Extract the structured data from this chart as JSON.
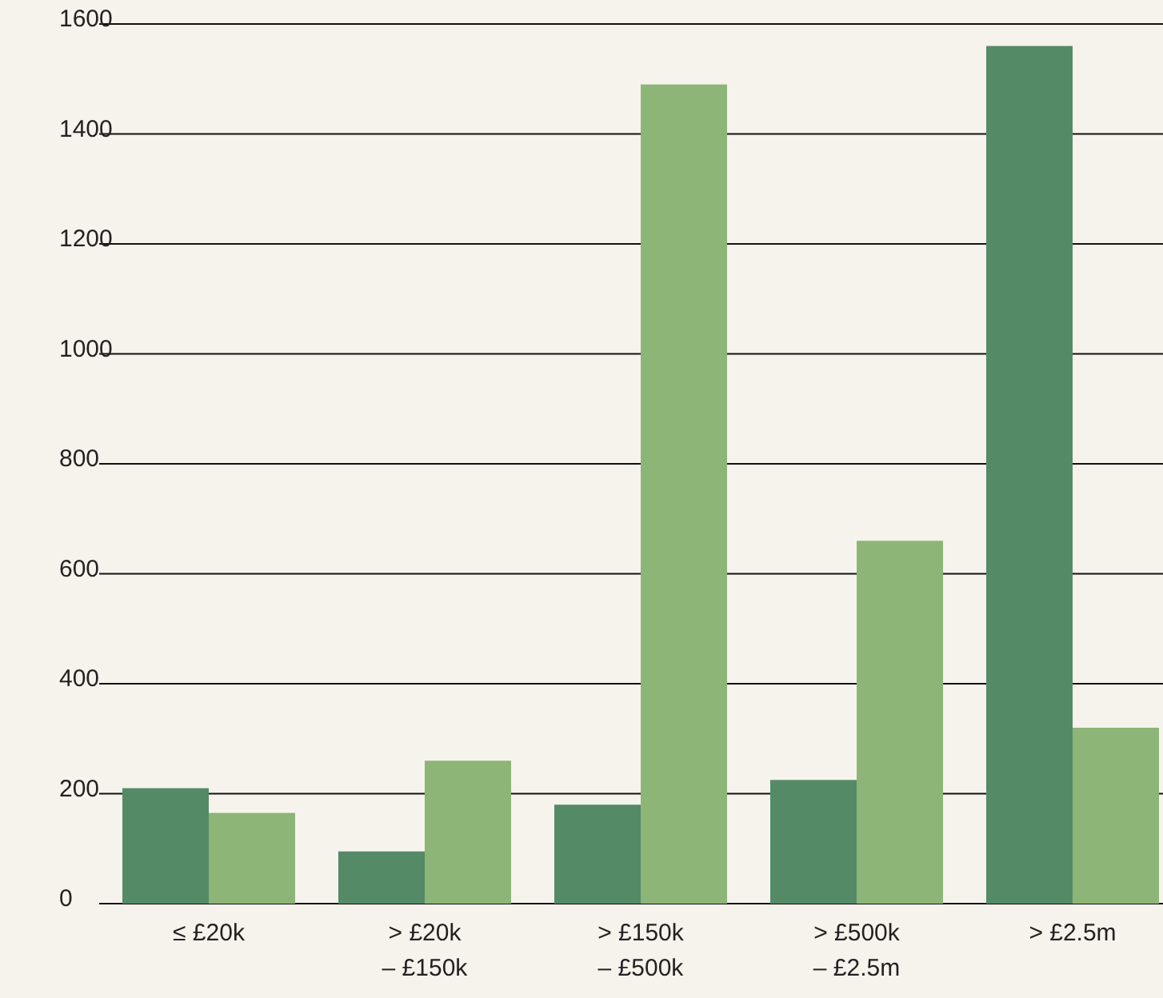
{
  "chart_data": {
    "type": "bar",
    "categories": [
      "≤ £20k",
      "> £20k\n– £150k",
      "> £150k\n– £500k",
      "> £500k\n– £2.5m",
      "> £2.5m"
    ],
    "series": [
      {
        "color": "#558a67",
        "values": [
          210,
          95,
          180,
          225,
          1560
        ]
      },
      {
        "color": "#8db577",
        "values": [
          165,
          260,
          1490,
          660,
          320
        ]
      }
    ],
    "ylim": [
      0,
      1600
    ],
    "yticks": [
      0,
      200,
      400,
      600,
      800,
      1000,
      1200,
      1400,
      1600
    ],
    "grid": "y"
  }
}
